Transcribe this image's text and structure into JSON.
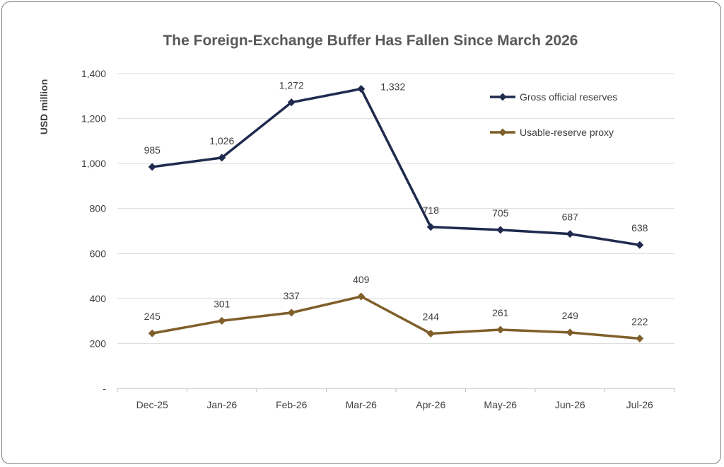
{
  "chart_data": {
    "type": "line",
    "title": "The Foreign-Exchange Buffer Has Fallen Since March 2026",
    "xlabel": "",
    "ylabel": "USD million",
    "categories": [
      "Dec-25",
      "Jan-26",
      "Feb-26",
      "Mar-26",
      "Apr-26",
      "May-26",
      "Jun-26",
      "Jul-26"
    ],
    "ylim": [
      0,
      1400
    ],
    "yticks": [
      0,
      200,
      400,
      600,
      800,
      1000,
      1200,
      1400
    ],
    "ytick_labels": [
      "-",
      "200",
      "400",
      "600",
      "800",
      "1,000",
      "1,200",
      "1,400"
    ],
    "grid": true,
    "legend_position": "top-right",
    "series": [
      {
        "name": "Gross official reserves",
        "color": "#1f2a4e",
        "marker": "diamond",
        "values": [
          985,
          1026,
          1272,
          1332,
          718,
          705,
          687,
          638
        ],
        "labels": [
          "985",
          "1,026",
          "1,272",
          "1,332",
          "718",
          "705",
          "687",
          "638"
        ]
      },
      {
        "name": "Usable-reserve proxy",
        "color": "#7f5f2a",
        "marker": "diamond",
        "values": [
          245,
          301,
          337,
          409,
          244,
          261,
          249,
          222
        ],
        "labels": [
          "245",
          "301",
          "337",
          "409",
          "244",
          "261",
          "249",
          "222"
        ]
      }
    ]
  }
}
